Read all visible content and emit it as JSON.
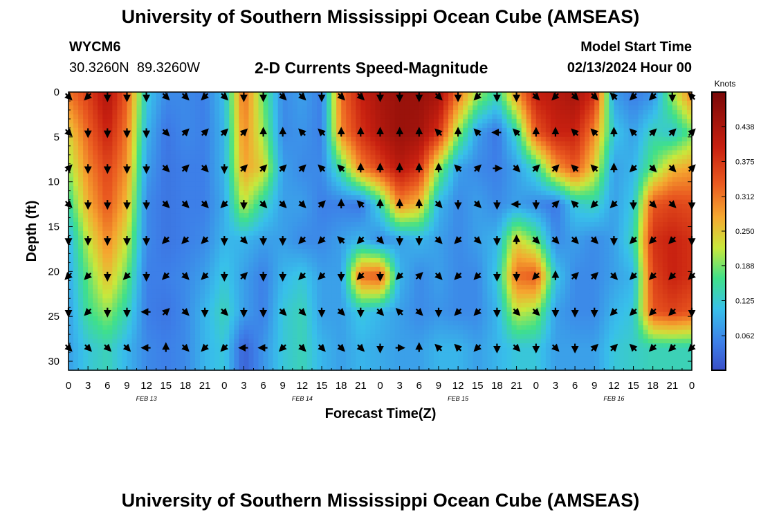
{
  "header": {
    "title": "University of Southern Mississippi Ocean Cube (AMSEAS)",
    "station": "WYCM6",
    "coords": "30.3260N  89.3260W",
    "subtitle": "2-D Currents Speed-Magnitude",
    "model_start_label": "Model Start Time",
    "model_start_value": "02/13/2024 Hour 00"
  },
  "footer": {
    "title": "University of Southern Mississippi Ocean Cube (AMSEAS)"
  },
  "chart_data": {
    "type": "heatmap",
    "title": "2-D Currents Speed-Magnitude",
    "xlabel": "Forecast Time(Z)",
    "ylabel": "Depth (ft)",
    "x_ticks": [
      "0",
      "3",
      "6",
      "9",
      "12",
      "15",
      "18",
      "21",
      "0",
      "3",
      "6",
      "9",
      "12",
      "15",
      "18",
      "21",
      "0",
      "3",
      "6",
      "9",
      "12",
      "15",
      "18",
      "21",
      "0",
      "3",
      "6",
      "9",
      "12",
      "15",
      "18",
      "21",
      "0"
    ],
    "date_labels": [
      {
        "label": "FEB 13",
        "at_tick": 4
      },
      {
        "label": "FEB 14",
        "at_tick": 12
      },
      {
        "label": "FEB 15",
        "at_tick": 20
      },
      {
        "label": "FEB 16",
        "at_tick": 28
      }
    ],
    "y_ticks": [
      0,
      5,
      10,
      15,
      20,
      25,
      30
    ],
    "ylim": [
      0,
      31
    ],
    "colorbar": {
      "unit": "Knots",
      "range": [
        0,
        0.5
      ],
      "ticks": [
        "0.438",
        "0.375",
        "0.312",
        "0.250",
        "0.188",
        "0.125",
        "0.062"
      ]
    },
    "depth_levels_ft": [
      0.5,
      4.5,
      8.5,
      12.5,
      16.5,
      20.5,
      24.5,
      28.5
    ],
    "speed_knots": [
      [
        0.31,
        0.36,
        0.43,
        0.33,
        0.12,
        0.06,
        0.06,
        0.05,
        0.11,
        0.32,
        0.18,
        0.06,
        0.08,
        0.05,
        0.32,
        0.4,
        0.44,
        0.46,
        0.46,
        0.44,
        0.31,
        0.2,
        0.14,
        0.28,
        0.4,
        0.42,
        0.44,
        0.38,
        0.08,
        0.05,
        0.07,
        0.2,
        0.3
      ],
      [
        0.24,
        0.33,
        0.4,
        0.31,
        0.1,
        0.04,
        0.06,
        0.05,
        0.1,
        0.3,
        0.2,
        0.06,
        0.07,
        0.05,
        0.3,
        0.38,
        0.43,
        0.46,
        0.45,
        0.38,
        0.2,
        0.08,
        0.04,
        0.14,
        0.34,
        0.4,
        0.4,
        0.3,
        0.12,
        0.08,
        0.14,
        0.12,
        0.18
      ],
      [
        0.2,
        0.3,
        0.36,
        0.29,
        0.08,
        0.04,
        0.05,
        0.05,
        0.1,
        0.28,
        0.24,
        0.08,
        0.06,
        0.06,
        0.16,
        0.3,
        0.36,
        0.42,
        0.38,
        0.2,
        0.08,
        0.06,
        0.05,
        0.08,
        0.14,
        0.28,
        0.34,
        0.24,
        0.08,
        0.1,
        0.18,
        0.26,
        0.28
      ],
      [
        0.15,
        0.27,
        0.34,
        0.26,
        0.06,
        0.04,
        0.05,
        0.05,
        0.09,
        0.22,
        0.14,
        0.08,
        0.08,
        0.05,
        0.05,
        0.04,
        0.14,
        0.3,
        0.26,
        0.1,
        0.06,
        0.08,
        0.06,
        0.08,
        0.06,
        0.04,
        0.12,
        0.14,
        0.08,
        0.12,
        0.34,
        0.36,
        0.35
      ],
      [
        0.1,
        0.22,
        0.3,
        0.22,
        0.06,
        0.04,
        0.05,
        0.06,
        0.1,
        0.1,
        0.08,
        0.08,
        0.06,
        0.06,
        0.08,
        0.1,
        0.06,
        0.08,
        0.1,
        0.08,
        0.06,
        0.08,
        0.1,
        0.24,
        0.18,
        0.06,
        0.08,
        0.06,
        0.08,
        0.14,
        0.38,
        0.4,
        0.38
      ],
      [
        0.09,
        0.18,
        0.26,
        0.18,
        0.05,
        0.05,
        0.06,
        0.08,
        0.12,
        0.08,
        0.05,
        0.1,
        0.12,
        0.08,
        0.08,
        0.32,
        0.34,
        0.1,
        0.06,
        0.08,
        0.06,
        0.06,
        0.12,
        0.32,
        0.34,
        0.12,
        0.06,
        0.06,
        0.08,
        0.1,
        0.36,
        0.4,
        0.38
      ],
      [
        0.08,
        0.16,
        0.2,
        0.14,
        0.05,
        0.04,
        0.06,
        0.1,
        0.14,
        0.08,
        0.05,
        0.12,
        0.14,
        0.08,
        0.08,
        0.12,
        0.1,
        0.08,
        0.06,
        0.07,
        0.06,
        0.06,
        0.1,
        0.22,
        0.2,
        0.08,
        0.06,
        0.06,
        0.1,
        0.12,
        0.34,
        0.36,
        0.34
      ],
      [
        0.08,
        0.12,
        0.14,
        0.1,
        0.06,
        0.05,
        0.06,
        0.1,
        0.12,
        0.02,
        0.07,
        0.12,
        0.14,
        0.1,
        0.08,
        0.1,
        0.09,
        0.08,
        0.08,
        0.1,
        0.1,
        0.08,
        0.1,
        0.12,
        0.12,
        0.08,
        0.08,
        0.08,
        0.12,
        0.13,
        0.14,
        0.14,
        0.14
      ]
    ],
    "direction_deg_from_north": [
      [
        135,
        225,
        180,
        180,
        180,
        135,
        135,
        225,
        135,
        180,
        180,
        135,
        135,
        180,
        135,
        135,
        180,
        180,
        180,
        135,
        180,
        225,
        180,
        180,
        135,
        225,
        135,
        135,
        315,
        225,
        225,
        180,
        315
      ],
      [
        135,
        180,
        180,
        180,
        180,
        135,
        45,
        45,
        45,
        45,
        0,
        0,
        315,
        315,
        0,
        0,
        0,
        0,
        0,
        315,
        0,
        315,
        270,
        315,
        0,
        0,
        315,
        315,
        0,
        315,
        45,
        45,
        45
      ],
      [
        45,
        180,
        180,
        180,
        180,
        135,
        45,
        135,
        180,
        45,
        45,
        45,
        45,
        315,
        315,
        0,
        0,
        0,
        0,
        0,
        315,
        45,
        90,
        135,
        45,
        45,
        315,
        315,
        0,
        225,
        135,
        135,
        45
      ],
      [
        135,
        180,
        180,
        180,
        180,
        135,
        135,
        135,
        225,
        180,
        135,
        135,
        135,
        45,
        0,
        315,
        0,
        0,
        0,
        135,
        180,
        135,
        180,
        270,
        180,
        45,
        315,
        225,
        225,
        180,
        135,
        135,
        180
      ],
      [
        180,
        180,
        180,
        180,
        180,
        225,
        225,
        225,
        180,
        135,
        180,
        180,
        225,
        225,
        315,
        225,
        135,
        180,
        180,
        135,
        225,
        135,
        180,
        0,
        135,
        135,
        135,
        135,
        180,
        225,
        225,
        225,
        180
      ],
      [
        225,
        225,
        180,
        225,
        180,
        225,
        135,
        225,
        180,
        45,
        180,
        180,
        225,
        225,
        180,
        225,
        180,
        225,
        45,
        135,
        225,
        225,
        180,
        180,
        225,
        0,
        45,
        45,
        135,
        225,
        225,
        225,
        225
      ],
      [
        180,
        225,
        180,
        180,
        270,
        45,
        135,
        180,
        135,
        180,
        180,
        135,
        135,
        180,
        135,
        180,
        135,
        315,
        135,
        180,
        225,
        225,
        180,
        135,
        135,
        180,
        180,
        180,
        225,
        225,
        225,
        225,
        180
      ],
      [
        135,
        135,
        135,
        135,
        270,
        0,
        135,
        225,
        225,
        270,
        270,
        225,
        135,
        135,
        135,
        135,
        180,
        90,
        0,
        315,
        315,
        225,
        180,
        135,
        180,
        135,
        180,
        45,
        45,
        315,
        225,
        225,
        225
      ]
    ]
  }
}
